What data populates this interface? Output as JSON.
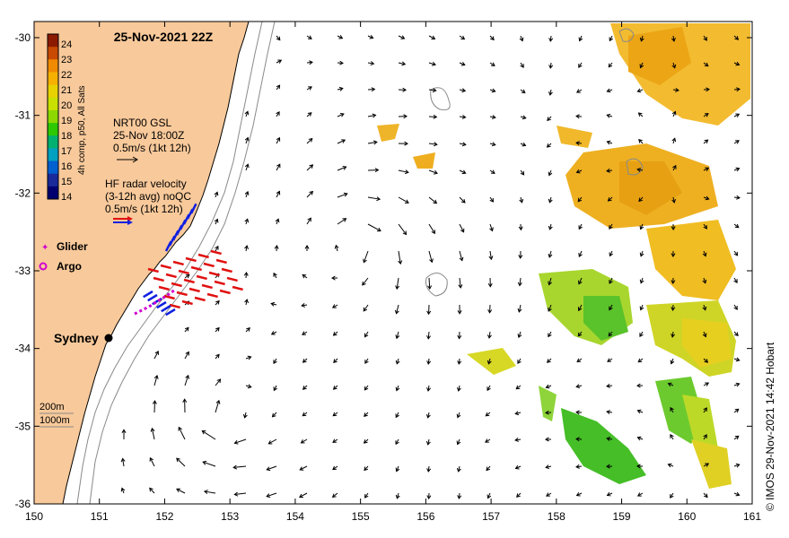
{
  "title": "25-Nov-2021 22Z",
  "colorbar": {
    "label": "4h comp, p50, All Sats",
    "ticks": [
      "24",
      "23",
      "22",
      "21",
      "20",
      "19",
      "18",
      "17",
      "16",
      "15",
      "14"
    ],
    "colors": [
      "#8b1a00",
      "#c84a00",
      "#f08a00",
      "#f6b000",
      "#e7d200",
      "#c9e000",
      "#8cd800",
      "#2ec800",
      "#00b070",
      "#00a0c0",
      "#0060d0",
      "#1a2a9a",
      "#000070"
    ]
  },
  "legend_gsl": {
    "line1": "NRT00 GSL",
    "line2": "25-Nov 18:00Z",
    "line3": "0.5m/s (1kt 12h)"
  },
  "legend_hf": {
    "line1": "HF radar velocity",
    "line2": "(3-12h avg) noQC",
    "line3": "0.5m/s (1kt 12h)"
  },
  "legend_glider": "Glider",
  "legend_argo": "Argo",
  "city": "Sydney",
  "depth_legend": {
    "d1": "200m",
    "d2": "1000m"
  },
  "credit": "© IMOS 29-Nov-2021 14:42 Hobart",
  "axes": {
    "x_ticks": [
      "150",
      "151",
      "152",
      "153",
      "154",
      "155",
      "156",
      "157",
      "158",
      "159",
      "160",
      "161"
    ],
    "y_ticks": [
      "-30",
      "-31",
      "-32",
      "-33",
      "-34",
      "-35",
      "-36"
    ]
  },
  "colors": {
    "land": "#f8c99a",
    "coast": "#000000",
    "glider": "#d000d0",
    "hf_red": "#e01010",
    "hf_blue": "#1020e0"
  }
}
